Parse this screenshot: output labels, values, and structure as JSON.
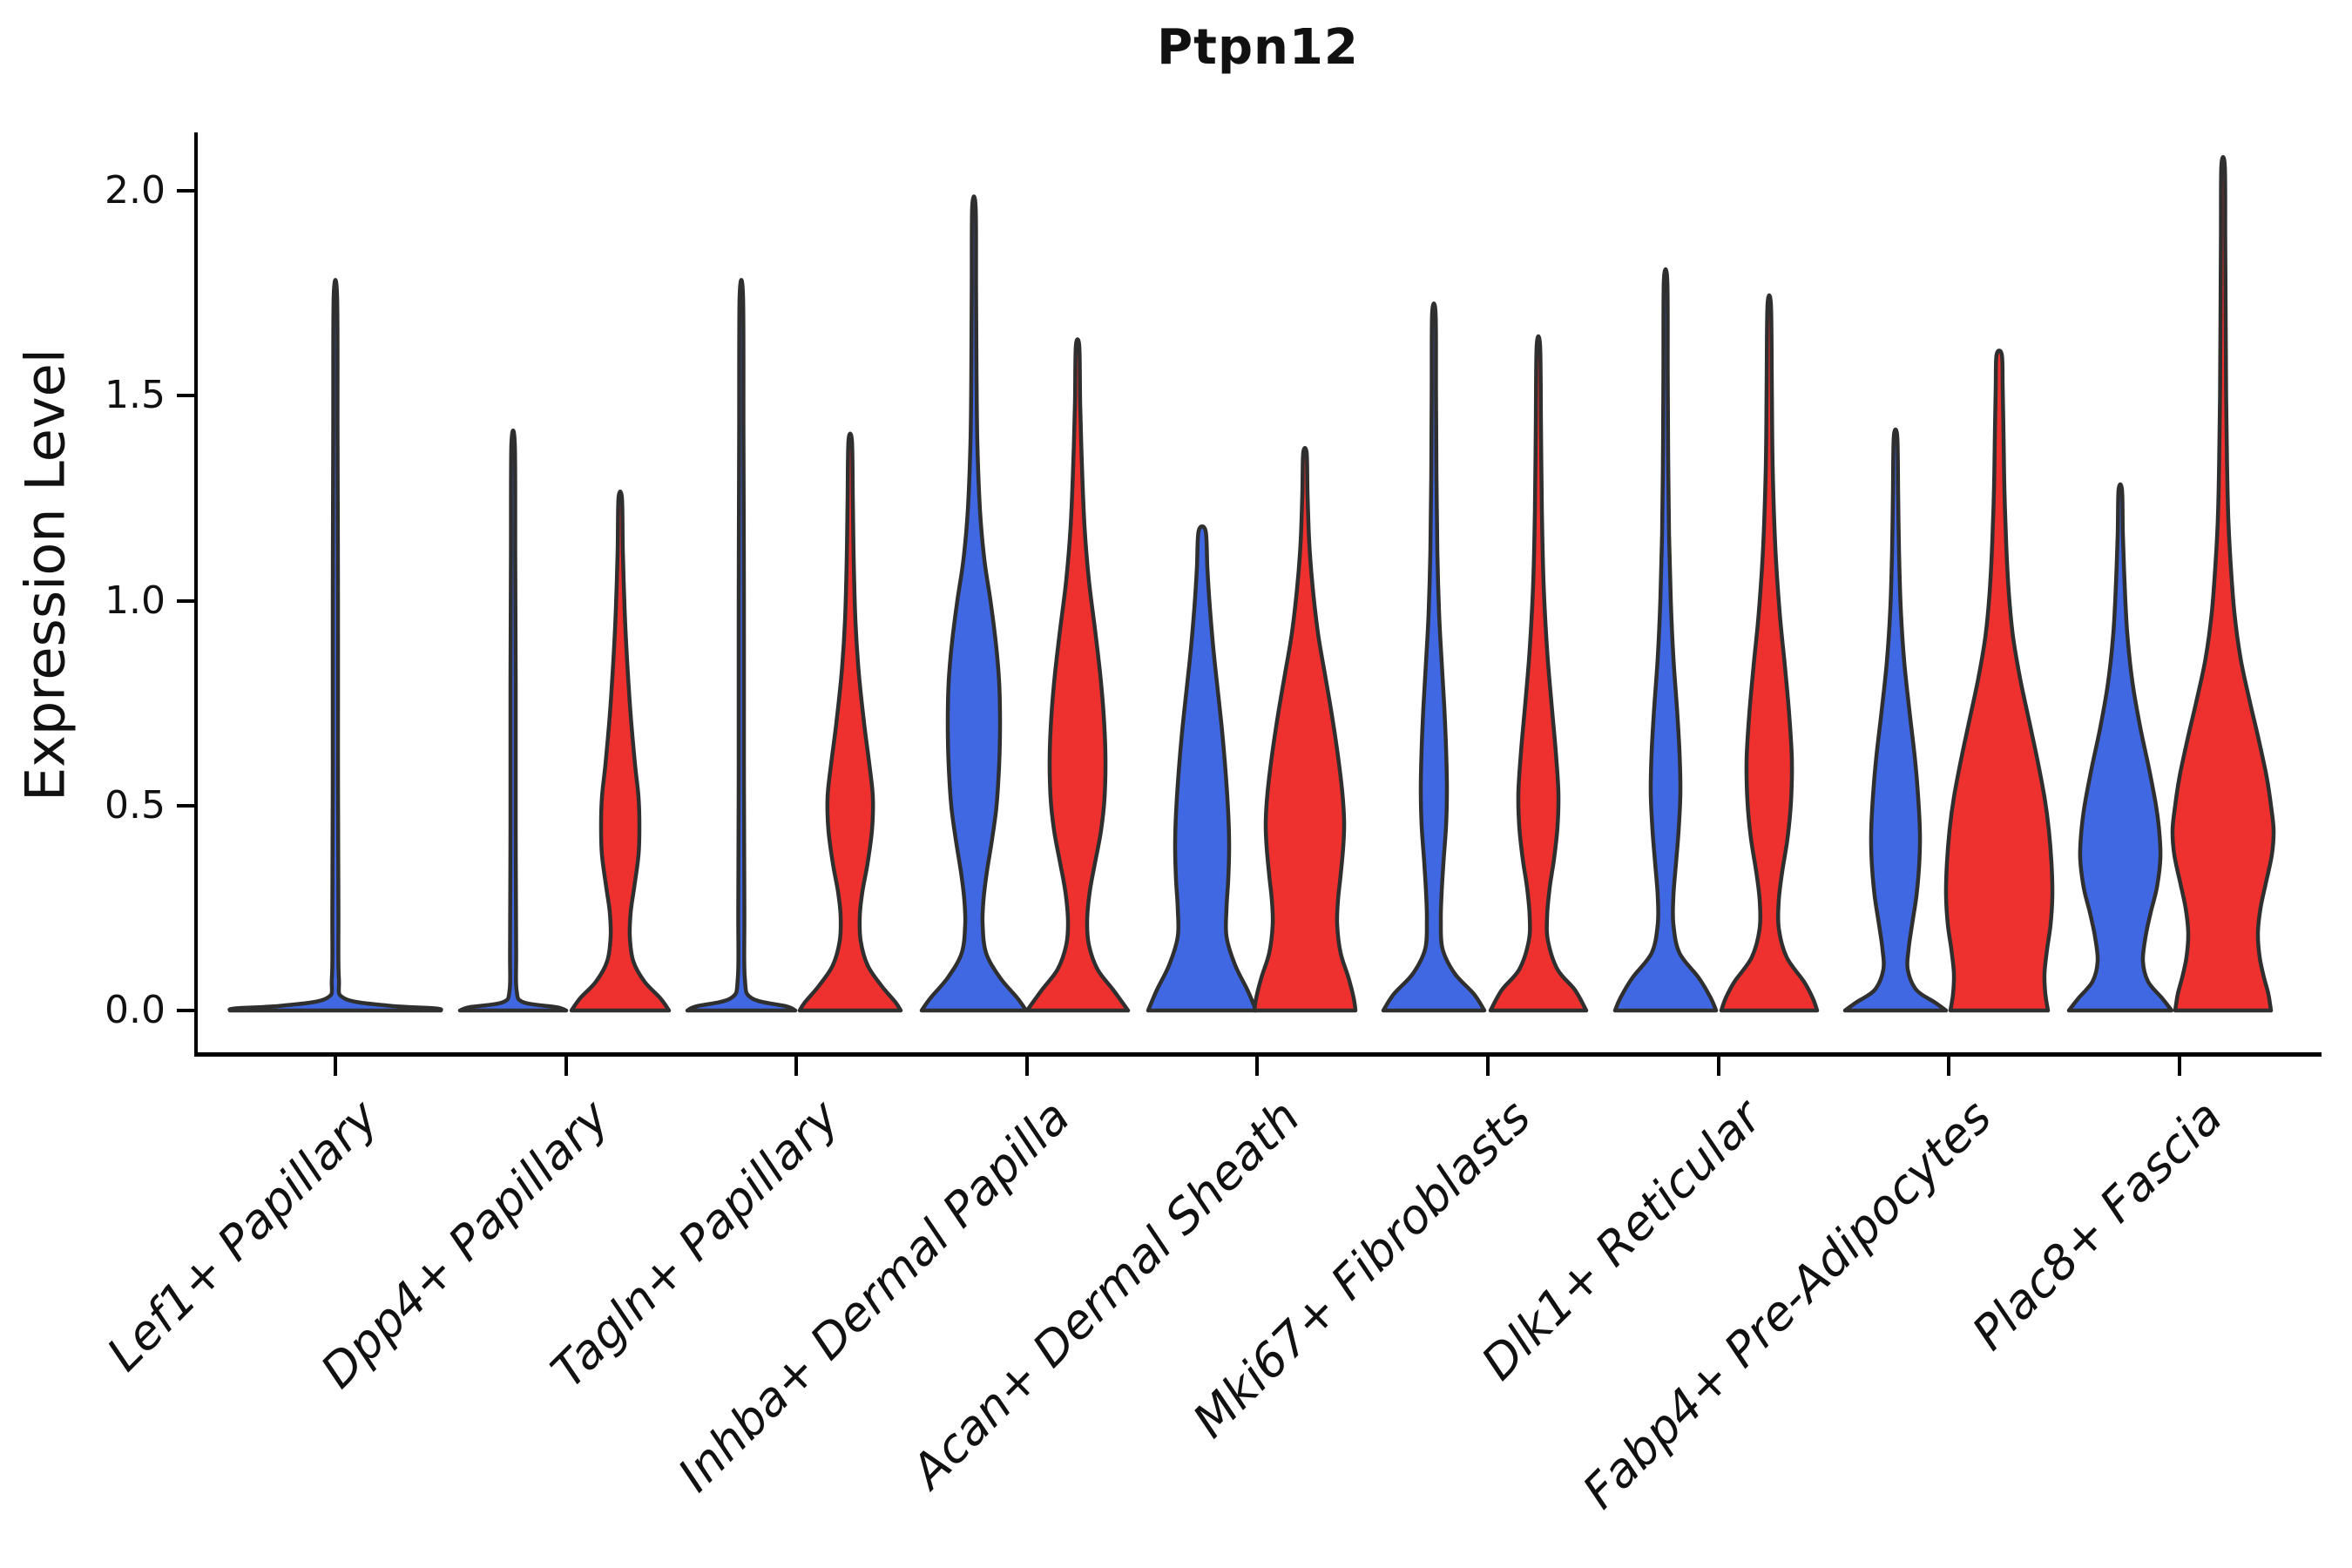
{
  "title": "Ptpn12",
  "ylabel": "Expression Level",
  "chart_data": {
    "type": "violin",
    "title": "Ptpn12",
    "xlabel": "",
    "ylabel": "Expression Level",
    "ylim": [
      0,
      2.1
    ],
    "grid": false,
    "legend": "none",
    "yticks": [
      {
        "label": "0.0",
        "value": 0.0
      },
      {
        "label": "0.5",
        "value": 0.5
      },
      {
        "label": "1.0",
        "value": 1.0
      },
      {
        "label": "1.5",
        "value": 1.5
      },
      {
        "label": "2.0",
        "value": 2.0
      }
    ],
    "categories": [
      "Lef1+ Papillary",
      "Dpp4+ Papillary",
      "Tagln+ Papillary",
      "Inhba+ Dermal Papilla",
      "Acan+ Dermal Sheath",
      "Mki67+ Fibroblasts",
      "Dlk1+ Reticular",
      "Fabp4+ Pre-Adipocytes",
      "Plac8+ Fascia"
    ],
    "colors": {
      "blue": "#4068E3",
      "red": "#EE312E",
      "outline": "#2f2f2f"
    },
    "violins": [
      {
        "category": "Lef1+ Papillary",
        "split": "blue",
        "center_x": 385,
        "max_value": 1.74,
        "profile": [
          [
            1.74,
            2
          ],
          [
            1.4,
            2.5
          ],
          [
            1.0,
            3
          ],
          [
            0.6,
            3
          ],
          [
            0.25,
            3.5
          ],
          [
            0.08,
            4
          ],
          [
            0.03,
            10
          ],
          [
            0.012,
            60
          ],
          [
            0.005,
            115
          ],
          [
            0,
            121
          ]
        ]
      },
      {
        "category": "Dpp4+ Papillary",
        "split": "blue",
        "center_x": 589,
        "max_value": 1.38,
        "profile": [
          [
            1.38,
            2
          ],
          [
            1.1,
            2.5
          ],
          [
            0.8,
            3
          ],
          [
            0.45,
            3
          ],
          [
            0.15,
            3.5
          ],
          [
            0.05,
            4
          ],
          [
            0.02,
            12
          ],
          [
            0.008,
            50
          ],
          [
            0,
            61
          ]
        ]
      },
      {
        "category": "Dpp4+ Papillary",
        "split": "red",
        "center_x": 712,
        "max_value": 1.25,
        "profile": [
          [
            1.25,
            2
          ],
          [
            1.12,
            3
          ],
          [
            0.98,
            5
          ],
          [
            0.85,
            8
          ],
          [
            0.72,
            12
          ],
          [
            0.6,
            17
          ],
          [
            0.52,
            21
          ],
          [
            0.45,
            22
          ],
          [
            0.38,
            21
          ],
          [
            0.3,
            16
          ],
          [
            0.24,
            12
          ],
          [
            0.18,
            11
          ],
          [
            0.12,
            15
          ],
          [
            0.07,
            28
          ],
          [
            0.03,
            46
          ],
          [
            0,
            56
          ]
        ]
      },
      {
        "category": "Tagln+ Papillary",
        "split": "blue",
        "center_x": 851,
        "max_value": 1.74,
        "profile": [
          [
            1.74,
            2
          ],
          [
            1.4,
            2.5
          ],
          [
            1.0,
            3
          ],
          [
            0.6,
            3
          ],
          [
            0.25,
            3.5
          ],
          [
            0.08,
            4
          ],
          [
            0.03,
            12
          ],
          [
            0.01,
            52
          ],
          [
            0,
            62
          ]
        ]
      },
      {
        "category": "Tagln+ Papillary",
        "split": "red",
        "center_x": 976,
        "max_value": 1.39,
        "profile": [
          [
            1.39,
            2
          ],
          [
            1.25,
            3
          ],
          [
            1.1,
            4
          ],
          [
            0.95,
            6
          ],
          [
            0.82,
            10
          ],
          [
            0.7,
            16
          ],
          [
            0.6,
            22
          ],
          [
            0.52,
            26
          ],
          [
            0.44,
            25
          ],
          [
            0.36,
            20
          ],
          [
            0.29,
            14
          ],
          [
            0.23,
            11
          ],
          [
            0.17,
            12
          ],
          [
            0.11,
            20
          ],
          [
            0.06,
            36
          ],
          [
            0.02,
            52
          ],
          [
            0,
            58
          ]
        ]
      },
      {
        "category": "Inhba+ Dermal Papilla",
        "split": "blue",
        "center_x": 1118,
        "max_value": 1.96,
        "profile": [
          [
            1.96,
            2
          ],
          [
            1.75,
            2.5
          ],
          [
            1.55,
            3
          ],
          [
            1.38,
            4
          ],
          [
            1.22,
            7
          ],
          [
            1.1,
            12
          ],
          [
            1.0,
            19
          ],
          [
            0.9,
            25
          ],
          [
            0.8,
            29
          ],
          [
            0.7,
            30
          ],
          [
            0.6,
            29
          ],
          [
            0.5,
            26
          ],
          [
            0.42,
            21
          ],
          [
            0.34,
            15
          ],
          [
            0.27,
            11
          ],
          [
            0.21,
            10
          ],
          [
            0.14,
            14
          ],
          [
            0.08,
            30
          ],
          [
            0.03,
            50
          ],
          [
            0,
            60
          ]
        ]
      },
      {
        "category": "Inhba+ Dermal Papilla",
        "split": "red",
        "center_x": 1237,
        "max_value": 1.62,
        "profile": [
          [
            1.62,
            2
          ],
          [
            1.48,
            3
          ],
          [
            1.33,
            5
          ],
          [
            1.18,
            8
          ],
          [
            1.05,
            13
          ],
          [
            0.93,
            20
          ],
          [
            0.82,
            26
          ],
          [
            0.72,
            30
          ],
          [
            0.62,
            32
          ],
          [
            0.52,
            31
          ],
          [
            0.44,
            27
          ],
          [
            0.36,
            20
          ],
          [
            0.29,
            14
          ],
          [
            0.22,
            11
          ],
          [
            0.16,
            13
          ],
          [
            0.1,
            23
          ],
          [
            0.05,
            41
          ],
          [
            0,
            58
          ]
        ]
      },
      {
        "category": "Acan+ Dermal Sheath",
        "split": "blue",
        "center_x": 1380,
        "max_value": 1.17,
        "profile": [
          [
            1.17,
            4
          ],
          [
            1.08,
            6
          ],
          [
            0.98,
            9
          ],
          [
            0.88,
            13
          ],
          [
            0.78,
            18
          ],
          [
            0.68,
            23
          ],
          [
            0.58,
            27
          ],
          [
            0.48,
            30
          ],
          [
            0.4,
            31
          ],
          [
            0.32,
            30
          ],
          [
            0.25,
            28
          ],
          [
            0.18,
            28
          ],
          [
            0.11,
            38
          ],
          [
            0.05,
            52
          ],
          [
            0,
            62
          ]
        ]
      },
      {
        "category": "Acan+ Dermal Sheath",
        "split": "red",
        "center_x": 1498,
        "max_value": 1.36,
        "profile": [
          [
            1.36,
            2
          ],
          [
            1.26,
            3
          ],
          [
            1.14,
            5
          ],
          [
            1.03,
            9
          ],
          [
            0.92,
            15
          ],
          [
            0.82,
            23
          ],
          [
            0.72,
            31
          ],
          [
            0.62,
            38
          ],
          [
            0.53,
            43
          ],
          [
            0.46,
            45
          ],
          [
            0.4,
            44
          ],
          [
            0.33,
            41
          ],
          [
            0.27,
            38
          ],
          [
            0.21,
            37
          ],
          [
            0.14,
            41
          ],
          [
            0.08,
            50
          ],
          [
            0.03,
            56
          ],
          [
            0,
            58
          ]
        ]
      },
      {
        "category": "Mki67+ Fibroblasts",
        "split": "blue",
        "center_x": 1646,
        "max_value": 1.7,
        "profile": [
          [
            1.7,
            2
          ],
          [
            1.5,
            2.5
          ],
          [
            1.3,
            3
          ],
          [
            1.12,
            4
          ],
          [
            0.97,
            6
          ],
          [
            0.85,
            9
          ],
          [
            0.74,
            12
          ],
          [
            0.64,
            14
          ],
          [
            0.54,
            15
          ],
          [
            0.45,
            14
          ],
          [
            0.36,
            11
          ],
          [
            0.29,
            9
          ],
          [
            0.22,
            8
          ],
          [
            0.15,
            10
          ],
          [
            0.09,
            24
          ],
          [
            0.04,
            46
          ],
          [
            0,
            58
          ]
        ]
      },
      {
        "category": "Mki67+ Fibroblasts",
        "split": "red",
        "center_x": 1766,
        "max_value": 1.62,
        "profile": [
          [
            1.62,
            2
          ],
          [
            1.42,
            3
          ],
          [
            1.22,
            4
          ],
          [
            1.04,
            6
          ],
          [
            0.88,
            10
          ],
          [
            0.75,
            15
          ],
          [
            0.63,
            20
          ],
          [
            0.53,
            23
          ],
          [
            0.45,
            22
          ],
          [
            0.37,
            18
          ],
          [
            0.3,
            13
          ],
          [
            0.23,
            10
          ],
          [
            0.17,
            11
          ],
          [
            0.1,
            22
          ],
          [
            0.05,
            42
          ],
          [
            0,
            55
          ]
        ]
      },
      {
        "category": "Dlk1+ Reticular",
        "split": "blue",
        "center_x": 1912,
        "max_value": 1.78,
        "profile": [
          [
            1.78,
            2
          ],
          [
            1.55,
            2.5
          ],
          [
            1.35,
            3
          ],
          [
            1.16,
            4
          ],
          [
            1.0,
            6
          ],
          [
            0.86,
            9
          ],
          [
            0.74,
            13
          ],
          [
            0.63,
            16
          ],
          [
            0.53,
            17
          ],
          [
            0.44,
            15
          ],
          [
            0.36,
            12
          ],
          [
            0.28,
            9
          ],
          [
            0.21,
            9
          ],
          [
            0.14,
            16
          ],
          [
            0.08,
            38
          ],
          [
            0.03,
            52
          ],
          [
            0,
            58
          ]
        ]
      },
      {
        "category": "Dlk1+ Reticular",
        "split": "red",
        "center_x": 2031,
        "max_value": 1.72,
        "profile": [
          [
            1.72,
            2
          ],
          [
            1.52,
            3
          ],
          [
            1.32,
            4
          ],
          [
            1.13,
            7
          ],
          [
            0.97,
            12
          ],
          [
            0.84,
            18
          ],
          [
            0.72,
            23
          ],
          [
            0.61,
            26
          ],
          [
            0.51,
            25
          ],
          [
            0.42,
            21
          ],
          [
            0.34,
            15
          ],
          [
            0.27,
            11
          ],
          [
            0.2,
            11
          ],
          [
            0.13,
            20
          ],
          [
            0.07,
            40
          ],
          [
            0.03,
            50
          ],
          [
            0,
            55
          ]
        ]
      },
      {
        "category": "Fabp4+ Pre-Adipocytes",
        "split": "blue",
        "center_x": 2176,
        "max_value": 1.4,
        "profile": [
          [
            1.4,
            2
          ],
          [
            1.26,
            3
          ],
          [
            1.12,
            4
          ],
          [
            0.98,
            6
          ],
          [
            0.85,
            10
          ],
          [
            0.73,
            16
          ],
          [
            0.62,
            22
          ],
          [
            0.52,
            26
          ],
          [
            0.43,
            28
          ],
          [
            0.35,
            27
          ],
          [
            0.28,
            24
          ],
          [
            0.21,
            19
          ],
          [
            0.15,
            15
          ],
          [
            0.1,
            14
          ],
          [
            0.05,
            24
          ],
          [
            0.02,
            45
          ],
          [
            0,
            58
          ]
        ]
      },
      {
        "category": "Fabp4+ Pre-Adipocytes",
        "split": "red",
        "center_x": 2295,
        "max_value": 1.6,
        "profile": [
          [
            1.6,
            3
          ],
          [
            1.52,
            4
          ],
          [
            1.4,
            5
          ],
          [
            1.27,
            6
          ],
          [
            1.14,
            8
          ],
          [
            1.02,
            11
          ],
          [
            0.91,
            16
          ],
          [
            0.81,
            24
          ],
          [
            0.71,
            34
          ],
          [
            0.61,
            44
          ],
          [
            0.52,
            52
          ],
          [
            0.44,
            57
          ],
          [
            0.36,
            60
          ],
          [
            0.28,
            61
          ],
          [
            0.21,
            59
          ],
          [
            0.15,
            55
          ],
          [
            0.09,
            52
          ],
          [
            0.04,
            53
          ],
          [
            0,
            56
          ]
        ]
      },
      {
        "category": "Plac8+ Fascia",
        "split": "blue",
        "center_x": 2434,
        "max_value": 1.27,
        "profile": [
          [
            1.27,
            2
          ],
          [
            1.16,
            3
          ],
          [
            1.04,
            5
          ],
          [
            0.92,
            8
          ],
          [
            0.8,
            14
          ],
          [
            0.69,
            23
          ],
          [
            0.59,
            33
          ],
          [
            0.5,
            41
          ],
          [
            0.43,
            45
          ],
          [
            0.37,
            46
          ],
          [
            0.3,
            42
          ],
          [
            0.24,
            35
          ],
          [
            0.18,
            29
          ],
          [
            0.12,
            26
          ],
          [
            0.07,
            32
          ],
          [
            0.03,
            48
          ],
          [
            0,
            59
          ]
        ]
      },
      {
        "category": "Plac8+ Fascia",
        "split": "red",
        "center_x": 2552,
        "max_value": 2.06,
        "profile": [
          [
            2.06,
            2
          ],
          [
            1.88,
            2.5
          ],
          [
            1.68,
            3
          ],
          [
            1.5,
            3.5
          ],
          [
            1.34,
            4.5
          ],
          [
            1.2,
            6
          ],
          [
            1.08,
            9
          ],
          [
            0.97,
            13
          ],
          [
            0.86,
            20
          ],
          [
            0.76,
            30
          ],
          [
            0.66,
            41
          ],
          [
            0.57,
            50
          ],
          [
            0.5,
            55
          ],
          [
            0.44,
            58
          ],
          [
            0.38,
            56
          ],
          [
            0.31,
            49
          ],
          [
            0.25,
            43
          ],
          [
            0.19,
            40
          ],
          [
            0.13,
            42
          ],
          [
            0.08,
            47
          ],
          [
            0.04,
            52
          ],
          [
            0,
            55
          ]
        ]
      }
    ]
  }
}
